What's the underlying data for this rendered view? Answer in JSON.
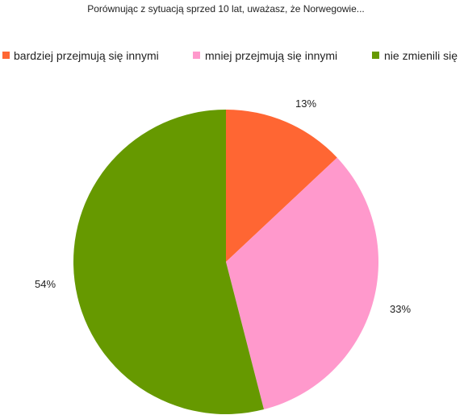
{
  "chart_data": {
    "type": "pie",
    "title": "Porównując z sytuacją sprzed 10 lat, uważasz, że Norwegowie...",
    "legend_position": "top",
    "slices": [
      {
        "label": "bardziej przejmują się innymi",
        "value": 13,
        "value_label": "13%",
        "color": "#ff6633"
      },
      {
        "label": "mniej przejmują się innymi",
        "value": 33,
        "value_label": "33%",
        "color": "#ff99cc"
      },
      {
        "label": "nie zmienili się",
        "value": 54,
        "value_label": "54%",
        "color": "#669900"
      }
    ]
  }
}
